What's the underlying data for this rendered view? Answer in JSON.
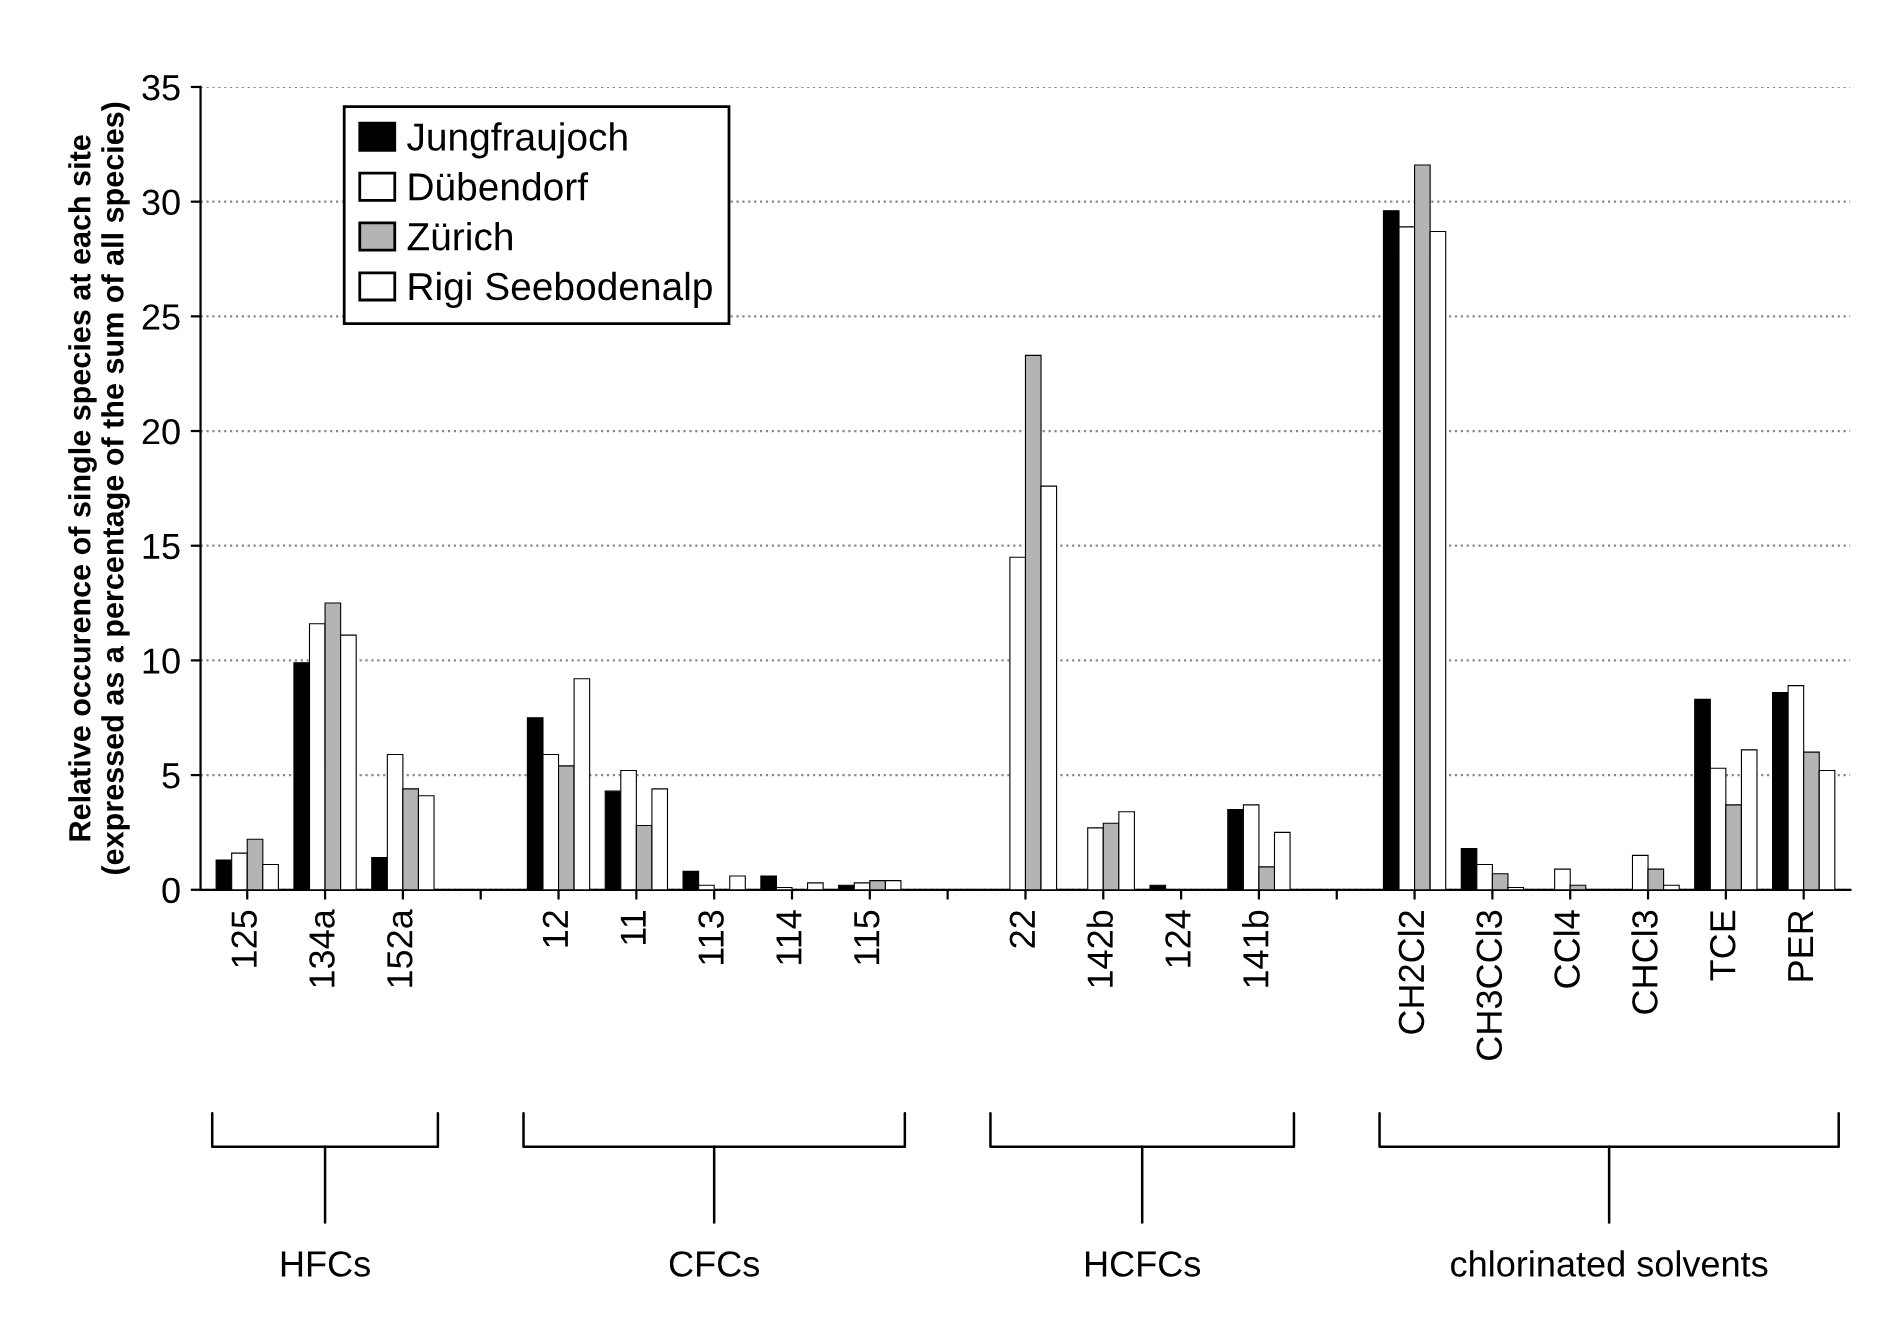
{
  "chart_data": {
    "type": "bar",
    "ylabel": "Relative occurence of single species at each site\n(expressed as a percentage of the sum of all species)",
    "categories": [
      "125",
      "134a",
      "152a",
      null,
      "12",
      "11",
      "113",
      "114",
      "115",
      null,
      "22",
      "142b",
      "124",
      "141b",
      null,
      "CH2Cl2",
      "CH3CCl3",
      "CCl4",
      "CHCl3",
      "TCE",
      "PER"
    ],
    "series": [
      {
        "name": "Jungfraujoch",
        "color": "#000000",
        "values": [
          1.3,
          9.9,
          1.4,
          null,
          7.5,
          4.3,
          0.8,
          0.6,
          0.2,
          null,
          null,
          null,
          0.2,
          3.5,
          null,
          29.6,
          1.8,
          null,
          null,
          8.3,
          8.6
        ]
      },
      {
        "name": "Dübendorf",
        "color": "#ffffff",
        "values": [
          1.6,
          11.6,
          5.9,
          null,
          5.9,
          5.2,
          0.2,
          0.1,
          0.3,
          null,
          14.5,
          2.7,
          null,
          3.7,
          null,
          28.9,
          1.1,
          0.9,
          1.5,
          5.3,
          8.9
        ]
      },
      {
        "name": "Zürich",
        "color": "#b4b4b4",
        "values": [
          2.2,
          12.5,
          4.4,
          null,
          5.4,
          2.8,
          null,
          null,
          0.4,
          null,
          23.3,
          2.9,
          null,
          1.0,
          null,
          31.6,
          0.7,
          0.2,
          0.9,
          3.7,
          6.0
        ]
      },
      {
        "name": "Rigi Seebodenalp",
        "color": "#ffffff",
        "values": [
          1.1,
          11.1,
          4.1,
          null,
          9.2,
          4.4,
          0.6,
          0.3,
          0.4,
          null,
          17.6,
          3.4,
          null,
          2.5,
          null,
          28.7,
          0.1,
          null,
          0.2,
          6.1,
          5.2
        ]
      }
    ],
    "ylim": [
      0,
      35
    ],
    "yticks": [
      0,
      5,
      10,
      15,
      20,
      25,
      30,
      35
    ],
    "grid": "y",
    "legend": "top left",
    "annotations": [
      "HFCs",
      "CFCs",
      "HCFCs",
      "chlorinated solvents"
    ]
  }
}
